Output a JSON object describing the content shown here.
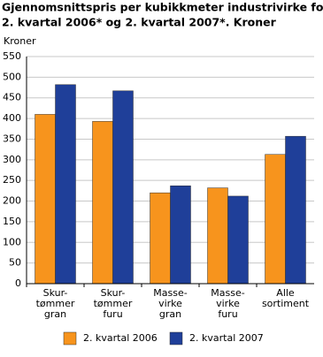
{
  "chart_data": {
    "type": "bar",
    "title": [
      "Gjennomsnittspris per kubikkmeter industrivirke for salg.",
      "2. kvartal 2006* og 2. kvartal 2007*. Kroner"
    ],
    "y_label": "Kroner",
    "categories": [
      [
        "Skur-",
        "tømmer",
        "gran"
      ],
      [
        "Skur-",
        "tømmer",
        "furu"
      ],
      [
        "Masse-",
        "virke",
        "gran"
      ],
      [
        "Masse-",
        "virke",
        "furu"
      ],
      [
        "Alle",
        "sortiment"
      ]
    ],
    "series": [
      {
        "name": "2. kvartal 2006",
        "color": "#f7941d",
        "values": [
          410,
          393,
          220,
          232,
          313
        ]
      },
      {
        "name": "2. kvartal 2007",
        "color": "#1f3f99",
        "values": [
          482,
          467,
          237,
          212,
          357
        ]
      }
    ],
    "ylim": [
      0,
      550
    ],
    "yticks": [
      0,
      50,
      100,
      150,
      200,
      250,
      300,
      350,
      400,
      450,
      500,
      550
    ],
    "grid": true,
    "legend": "bottom"
  }
}
